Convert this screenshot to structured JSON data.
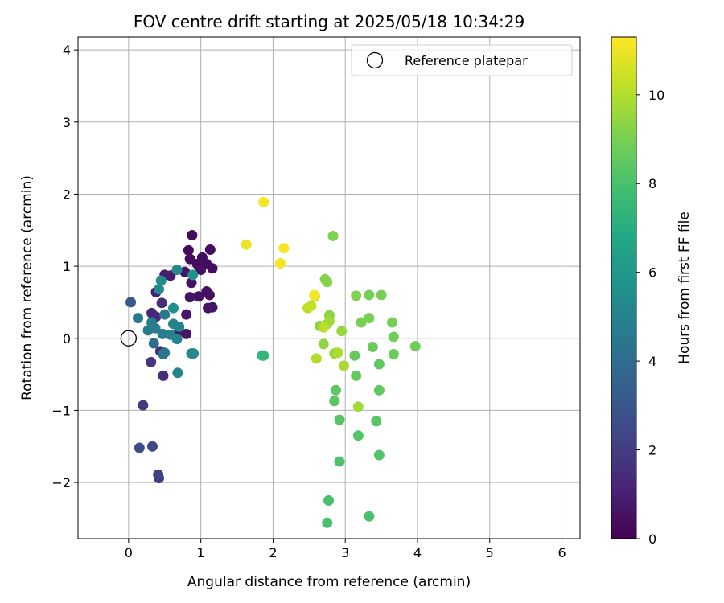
{
  "chart_data": {
    "type": "scatter",
    "title": "FOV centre drift starting at 2025/05/18 10:34:29",
    "xlabel": "Angular distance from reference (arcmin)",
    "ylabel": "Rotation from reference (arcmin)",
    "xlim": [
      -0.7,
      6.25
    ],
    "ylim": [
      -2.78,
      4.18
    ],
    "xticks": [
      "0",
      "1",
      "2",
      "3",
      "4",
      "5",
      "6"
    ],
    "yticks": [
      "−2",
      "−1",
      "0",
      "1",
      "2",
      "3",
      "4"
    ],
    "grid": true,
    "legend": {
      "placement": "top-right",
      "entries": [
        "Reference platepar"
      ]
    },
    "reference_point": {
      "x": 0,
      "y": 0
    },
    "colorbar": {
      "label": "Hours from first FF file",
      "colormap": "viridis",
      "range": [
        0,
        11.3
      ],
      "ticks": [
        "0",
        "2",
        "4",
        "6",
        "8",
        "10"
      ]
    },
    "points": [
      {
        "x": 0.88,
        "y": 1.43,
        "c": 0.3
      },
      {
        "x": 0.83,
        "y": 1.22,
        "c": 0.3
      },
      {
        "x": 0.85,
        "y": 1.1,
        "c": 0.3
      },
      {
        "x": 0.95,
        "y": 1.03,
        "c": 0.4
      },
      {
        "x": 1.02,
        "y": 1.12,
        "c": 0.4
      },
      {
        "x": 1.13,
        "y": 1.23,
        "c": 0.4
      },
      {
        "x": 1.08,
        "y": 1.03,
        "c": 0.4
      },
      {
        "x": 1.16,
        "y": 0.97,
        "c": 0.4
      },
      {
        "x": 1.0,
        "y": 0.95,
        "c": 0.5
      },
      {
        "x": 1.08,
        "y": 0.65,
        "c": 0.5
      },
      {
        "x": 1.12,
        "y": 0.6,
        "c": 0.5
      },
      {
        "x": 0.97,
        "y": 0.58,
        "c": 0.5
      },
      {
        "x": 0.87,
        "y": 0.77,
        "c": 0.5
      },
      {
        "x": 0.85,
        "y": 0.57,
        "c": 0.6
      },
      {
        "x": 1.1,
        "y": 0.42,
        "c": 0.6
      },
      {
        "x": 1.16,
        "y": 0.43,
        "c": 0.6
      },
      {
        "x": 0.78,
        "y": 0.92,
        "c": 0.6
      },
      {
        "x": 0.8,
        "y": 0.33,
        "c": 0.7
      },
      {
        "x": 0.7,
        "y": 0.1,
        "c": 0.7
      },
      {
        "x": 0.8,
        "y": 0.06,
        "c": 0.7
      },
      {
        "x": 0.58,
        "y": 0.87,
        "c": 0.8
      },
      {
        "x": 0.5,
        "y": 0.88,
        "c": 0.9
      },
      {
        "x": 0.38,
        "y": 0.64,
        "c": 1.0
      },
      {
        "x": 0.32,
        "y": 0.35,
        "c": 1.2
      },
      {
        "x": 0.38,
        "y": 0.3,
        "c": 1.3
      },
      {
        "x": 0.46,
        "y": 0.49,
        "c": 1.5
      },
      {
        "x": 0.48,
        "y": -0.52,
        "c": 1.5
      },
      {
        "x": 0.44,
        "y": -0.18,
        "c": 1.6
      },
      {
        "x": 0.31,
        "y": -0.33,
        "c": 1.8
      },
      {
        "x": 0.2,
        "y": -0.93,
        "c": 1.8
      },
      {
        "x": 0.42,
        "y": -1.94,
        "c": 2.0
      },
      {
        "x": 0.41,
        "y": -1.89,
        "c": 2.2
      },
      {
        "x": 0.33,
        "y": -1.5,
        "c": 2.4
      },
      {
        "x": 0.15,
        "y": -1.52,
        "c": 2.6
      },
      {
        "x": 0.03,
        "y": 0.5,
        "c": 3.2
      },
      {
        "x": 0.35,
        "y": -0.07,
        "c": 4.0
      },
      {
        "x": 0.48,
        "y": -0.22,
        "c": 4.2
      },
      {
        "x": 0.5,
        "y": -0.2,
        "c": 4.4
      },
      {
        "x": 0.5,
        "y": 0.33,
        "c": 4.5
      },
      {
        "x": 0.13,
        "y": 0.28,
        "c": 4.5
      },
      {
        "x": 0.27,
        "y": 0.11,
        "c": 4.7
      },
      {
        "x": 0.32,
        "y": 0.22,
        "c": 4.7
      },
      {
        "x": 0.37,
        "y": 0.14,
        "c": 4.8
      },
      {
        "x": 0.47,
        "y": 0.06,
        "c": 4.8
      },
      {
        "x": 0.58,
        "y": 0.05,
        "c": 4.9
      },
      {
        "x": 0.62,
        "y": 0.2,
        "c": 5.0
      },
      {
        "x": 0.7,
        "y": 0.16,
        "c": 5.0
      },
      {
        "x": 0.67,
        "y": -0.01,
        "c": 5.1
      },
      {
        "x": 0.68,
        "y": -0.48,
        "c": 5.1
      },
      {
        "x": 0.67,
        "y": 0.95,
        "c": 5.2
      },
      {
        "x": 0.87,
        "y": -0.21,
        "c": 5.3
      },
      {
        "x": 0.9,
        "y": -0.21,
        "c": 5.3
      },
      {
        "x": 0.42,
        "y": 0.68,
        "c": 5.4
      },
      {
        "x": 0.45,
        "y": 0.8,
        "c": 5.5
      },
      {
        "x": 0.62,
        "y": 0.42,
        "c": 5.6
      },
      {
        "x": 0.89,
        "y": 0.88,
        "c": 5.7
      },
      {
        "x": 1.85,
        "y": -0.24,
        "c": 7.3
      },
      {
        "x": 1.87,
        "y": -0.24,
        "c": 7.4
      },
      {
        "x": 2.77,
        "y": -2.25,
        "c": 8.0
      },
      {
        "x": 2.75,
        "y": -2.56,
        "c": 8.0
      },
      {
        "x": 3.33,
        "y": -2.47,
        "c": 8.0
      },
      {
        "x": 2.92,
        "y": -1.71,
        "c": 8.1
      },
      {
        "x": 3.47,
        "y": -1.62,
        "c": 8.2
      },
      {
        "x": 3.18,
        "y": -1.35,
        "c": 8.2
      },
      {
        "x": 2.92,
        "y": -1.13,
        "c": 8.3
      },
      {
        "x": 3.43,
        "y": -1.15,
        "c": 8.3
      },
      {
        "x": 2.85,
        "y": -0.87,
        "c": 8.4
      },
      {
        "x": 2.87,
        "y": -0.72,
        "c": 8.4
      },
      {
        "x": 3.47,
        "y": -0.72,
        "c": 8.5
      },
      {
        "x": 3.47,
        "y": -0.36,
        "c": 8.5
      },
      {
        "x": 3.15,
        "y": -0.52,
        "c": 8.6
      },
      {
        "x": 3.13,
        "y": -0.24,
        "c": 8.6
      },
      {
        "x": 3.38,
        "y": -0.12,
        "c": 8.7
      },
      {
        "x": 3.67,
        "y": -0.22,
        "c": 8.7
      },
      {
        "x": 3.97,
        "y": -0.11,
        "c": 8.8
      },
      {
        "x": 3.67,
        "y": 0.02,
        "c": 8.8
      },
      {
        "x": 3.65,
        "y": 0.22,
        "c": 8.9
      },
      {
        "x": 3.33,
        "y": 0.6,
        "c": 8.9
      },
      {
        "x": 3.5,
        "y": 0.6,
        "c": 8.9
      },
      {
        "x": 3.33,
        "y": 0.28,
        "c": 9.0
      },
      {
        "x": 3.22,
        "y": 0.22,
        "c": 9.0
      },
      {
        "x": 3.15,
        "y": 0.59,
        "c": 9.1
      },
      {
        "x": 2.83,
        "y": 1.42,
        "c": 9.1
      },
      {
        "x": 2.72,
        "y": 0.82,
        "c": 9.2
      },
      {
        "x": 2.75,
        "y": 0.78,
        "c": 9.2
      },
      {
        "x": 2.78,
        "y": 0.32,
        "c": 9.3
      },
      {
        "x": 2.65,
        "y": 0.17,
        "c": 9.3
      },
      {
        "x": 2.7,
        "y": -0.08,
        "c": 9.4
      },
      {
        "x": 2.88,
        "y": -0.2,
        "c": 9.4
      },
      {
        "x": 2.85,
        "y": -0.21,
        "c": 9.5
      },
      {
        "x": 2.95,
        "y": 0.1,
        "c": 9.5
      },
      {
        "x": 2.75,
        "y": 0.2,
        "c": 9.6
      },
      {
        "x": 2.78,
        "y": 0.24,
        "c": 9.7
      },
      {
        "x": 3.18,
        "y": -0.95,
        "c": 9.7
      },
      {
        "x": 2.98,
        "y": -0.38,
        "c": 9.8
      },
      {
        "x": 2.9,
        "y": -0.2,
        "c": 9.9
      },
      {
        "x": 2.6,
        "y": -0.28,
        "c": 10.0
      },
      {
        "x": 2.7,
        "y": 0.15,
        "c": 10.1
      },
      {
        "x": 2.48,
        "y": 0.42,
        "c": 10.2
      },
      {
        "x": 2.53,
        "y": 0.45,
        "c": 10.3
      },
      {
        "x": 2.58,
        "y": 0.58,
        "c": 10.4
      },
      {
        "x": 1.63,
        "y": 1.3,
        "c": 11.0
      },
      {
        "x": 1.87,
        "y": 1.89,
        "c": 11.1
      },
      {
        "x": 2.1,
        "y": 1.04,
        "c": 11.1
      },
      {
        "x": 2.15,
        "y": 1.25,
        "c": 11.2
      },
      {
        "x": 2.57,
        "y": 0.6,
        "c": 11.2
      }
    ]
  }
}
